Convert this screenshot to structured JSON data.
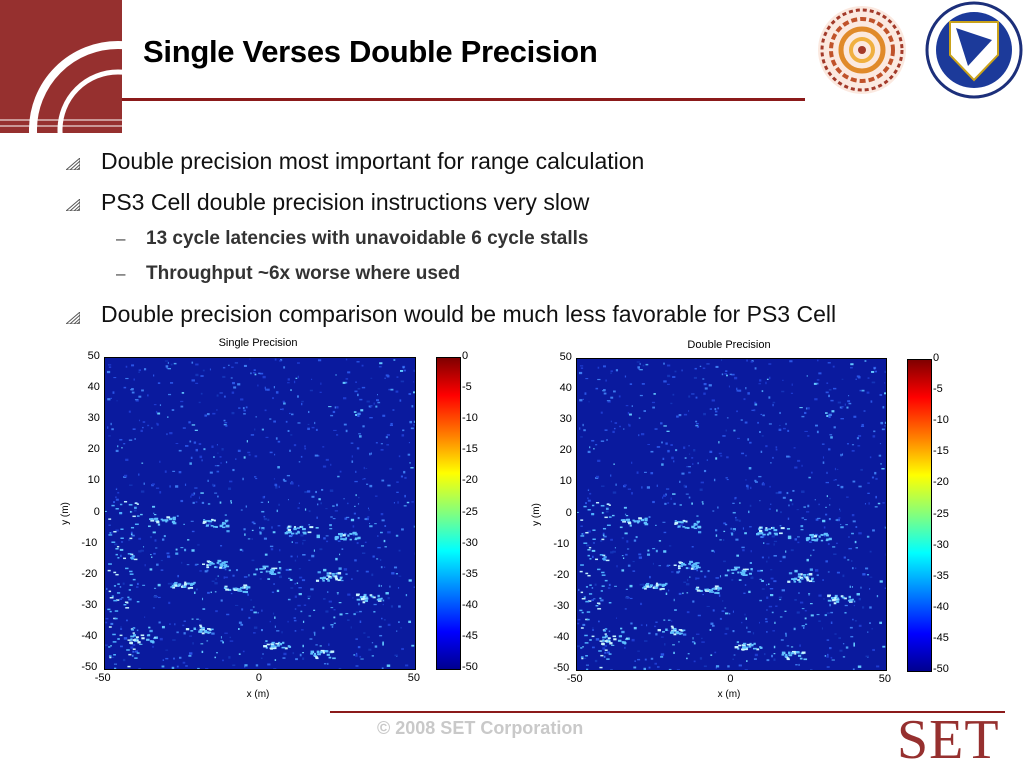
{
  "slide": {
    "title": "Single Verses Double Precision",
    "bullets": [
      {
        "text": "Double precision most important for range calculation"
      },
      {
        "text": "PS3 Cell double precision instructions very slow",
        "sub": [
          "13 cycle latencies with unavoidable 6 cycle stalls",
          "Throughput ~6x worse where used"
        ]
      },
      {
        "text": "Double precision comparison would be much less favorable for PS3 Cell"
      }
    ],
    "footer": {
      "copyright": "© 2008 SET Corporation",
      "brand": "SET"
    }
  },
  "plots": [
    {
      "title": "Single Precision",
      "xlabel": "x (m)",
      "ylabel": "y (m)",
      "xticks": [
        "-50",
        "0",
        "50"
      ],
      "yticks": [
        "50",
        "40",
        "30",
        "20",
        "10",
        "0",
        "-10",
        "-20",
        "-30",
        "-40",
        "-50"
      ],
      "colorbar_ticks": [
        "0",
        "-5",
        "-10",
        "-15",
        "-20",
        "-25",
        "-30",
        "-35",
        "-40",
        "-45",
        "-50"
      ]
    },
    {
      "title": "Double Precision",
      "xlabel": "x (m)",
      "ylabel": "y (m)",
      "xticks": [
        "-50",
        "0",
        "50"
      ],
      "yticks": [
        "50",
        "40",
        "30",
        "20",
        "10",
        "0",
        "-10",
        "-20",
        "-30",
        "-40",
        "-50"
      ],
      "colorbar_ticks": [
        "0",
        "-5",
        "-10",
        "-15",
        "-20",
        "-25",
        "-30",
        "-35",
        "-40",
        "-45",
        "-50"
      ]
    }
  ],
  "icons": {
    "bullet": "triangle-hatch-icon",
    "logo_left": "spiral-logo",
    "logo_right": "air-force-research-laboratory-shield"
  },
  "colors": {
    "accent": "#96302f",
    "rule": "#8b1a1a",
    "image_background": "#0a1a9e"
  }
}
